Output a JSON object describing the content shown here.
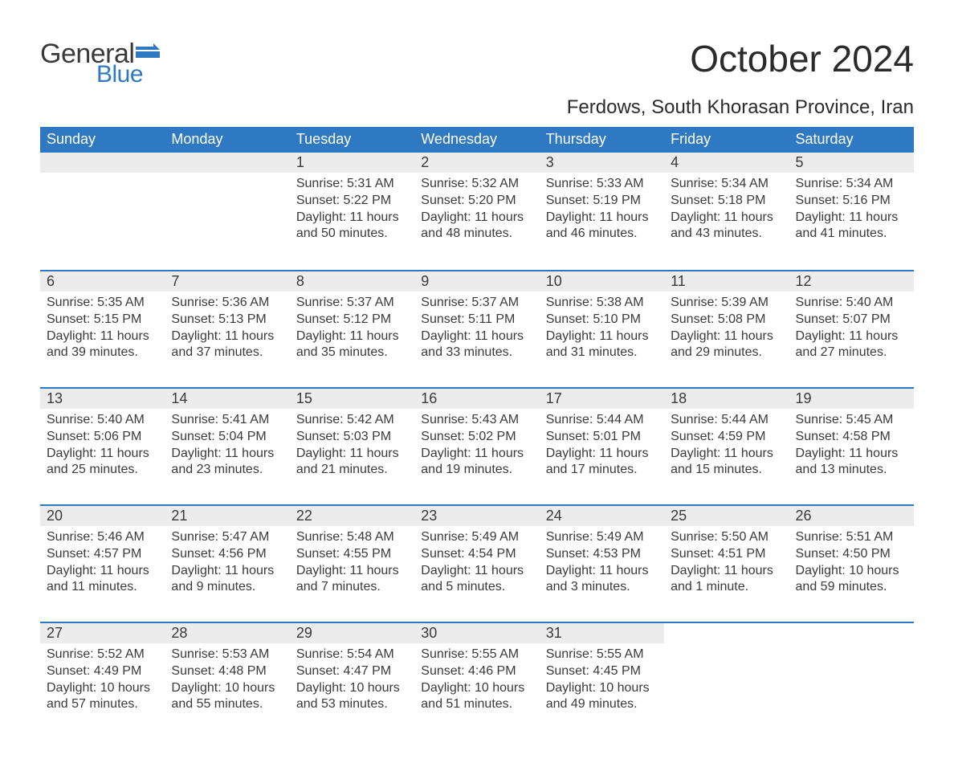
{
  "logo": {
    "text_general": "General",
    "text_blue": "Blue",
    "general_color": "#3a3a3a",
    "blue_color": "#2f78c2",
    "flag_color": "#2f78c2"
  },
  "header": {
    "month_title": "October 2024",
    "location": "Ferdows, South Khorasan Province, Iran"
  },
  "calendar": {
    "header_bg": "#2f78c2",
    "header_text_color": "#ffffff",
    "week_border_color": "#2f78c2",
    "daynum_bg": "#ececec",
    "text_color": "#3a3a3a",
    "background_color": "#ffffff",
    "weekday_fontsize": 18,
    "daynum_fontsize": 18,
    "body_fontsize": 16,
    "columns": 7,
    "rows": 5,
    "weekdays": [
      "Sunday",
      "Monday",
      "Tuesday",
      "Wednesday",
      "Thursday",
      "Friday",
      "Saturday"
    ],
    "weeks": [
      [
        {
          "day": "",
          "lines": []
        },
        {
          "day": "",
          "lines": []
        },
        {
          "day": "1",
          "lines": [
            "Sunrise: 5:31 AM",
            "Sunset: 5:22 PM",
            "Daylight: 11 hours",
            "and 50 minutes."
          ]
        },
        {
          "day": "2",
          "lines": [
            "Sunrise: 5:32 AM",
            "Sunset: 5:20 PM",
            "Daylight: 11 hours",
            "and 48 minutes."
          ]
        },
        {
          "day": "3",
          "lines": [
            "Sunrise: 5:33 AM",
            "Sunset: 5:19 PM",
            "Daylight: 11 hours",
            "and 46 minutes."
          ]
        },
        {
          "day": "4",
          "lines": [
            "Sunrise: 5:34 AM",
            "Sunset: 5:18 PM",
            "Daylight: 11 hours",
            "and 43 minutes."
          ]
        },
        {
          "day": "5",
          "lines": [
            "Sunrise: 5:34 AM",
            "Sunset: 5:16 PM",
            "Daylight: 11 hours",
            "and 41 minutes."
          ]
        }
      ],
      [
        {
          "day": "6",
          "lines": [
            "Sunrise: 5:35 AM",
            "Sunset: 5:15 PM",
            "Daylight: 11 hours",
            "and 39 minutes."
          ]
        },
        {
          "day": "7",
          "lines": [
            "Sunrise: 5:36 AM",
            "Sunset: 5:13 PM",
            "Daylight: 11 hours",
            "and 37 minutes."
          ]
        },
        {
          "day": "8",
          "lines": [
            "Sunrise: 5:37 AM",
            "Sunset: 5:12 PM",
            "Daylight: 11 hours",
            "and 35 minutes."
          ]
        },
        {
          "day": "9",
          "lines": [
            "Sunrise: 5:37 AM",
            "Sunset: 5:11 PM",
            "Daylight: 11 hours",
            "and 33 minutes."
          ]
        },
        {
          "day": "10",
          "lines": [
            "Sunrise: 5:38 AM",
            "Sunset: 5:10 PM",
            "Daylight: 11 hours",
            "and 31 minutes."
          ]
        },
        {
          "day": "11",
          "lines": [
            "Sunrise: 5:39 AM",
            "Sunset: 5:08 PM",
            "Daylight: 11 hours",
            "and 29 minutes."
          ]
        },
        {
          "day": "12",
          "lines": [
            "Sunrise: 5:40 AM",
            "Sunset: 5:07 PM",
            "Daylight: 11 hours",
            "and 27 minutes."
          ]
        }
      ],
      [
        {
          "day": "13",
          "lines": [
            "Sunrise: 5:40 AM",
            "Sunset: 5:06 PM",
            "Daylight: 11 hours",
            "and 25 minutes."
          ]
        },
        {
          "day": "14",
          "lines": [
            "Sunrise: 5:41 AM",
            "Sunset: 5:04 PM",
            "Daylight: 11 hours",
            "and 23 minutes."
          ]
        },
        {
          "day": "15",
          "lines": [
            "Sunrise: 5:42 AM",
            "Sunset: 5:03 PM",
            "Daylight: 11 hours",
            "and 21 minutes."
          ]
        },
        {
          "day": "16",
          "lines": [
            "Sunrise: 5:43 AM",
            "Sunset: 5:02 PM",
            "Daylight: 11 hours",
            "and 19 minutes."
          ]
        },
        {
          "day": "17",
          "lines": [
            "Sunrise: 5:44 AM",
            "Sunset: 5:01 PM",
            "Daylight: 11 hours",
            "and 17 minutes."
          ]
        },
        {
          "day": "18",
          "lines": [
            "Sunrise: 5:44 AM",
            "Sunset: 4:59 PM",
            "Daylight: 11 hours",
            "and 15 minutes."
          ]
        },
        {
          "day": "19",
          "lines": [
            "Sunrise: 5:45 AM",
            "Sunset: 4:58 PM",
            "Daylight: 11 hours",
            "and 13 minutes."
          ]
        }
      ],
      [
        {
          "day": "20",
          "lines": [
            "Sunrise: 5:46 AM",
            "Sunset: 4:57 PM",
            "Daylight: 11 hours",
            "and 11 minutes."
          ]
        },
        {
          "day": "21",
          "lines": [
            "Sunrise: 5:47 AM",
            "Sunset: 4:56 PM",
            "Daylight: 11 hours",
            "and 9 minutes."
          ]
        },
        {
          "day": "22",
          "lines": [
            "Sunrise: 5:48 AM",
            "Sunset: 4:55 PM",
            "Daylight: 11 hours",
            "and 7 minutes."
          ]
        },
        {
          "day": "23",
          "lines": [
            "Sunrise: 5:49 AM",
            "Sunset: 4:54 PM",
            "Daylight: 11 hours",
            "and 5 minutes."
          ]
        },
        {
          "day": "24",
          "lines": [
            "Sunrise: 5:49 AM",
            "Sunset: 4:53 PM",
            "Daylight: 11 hours",
            "and 3 minutes."
          ]
        },
        {
          "day": "25",
          "lines": [
            "Sunrise: 5:50 AM",
            "Sunset: 4:51 PM",
            "Daylight: 11 hours",
            "and 1 minute."
          ]
        },
        {
          "day": "26",
          "lines": [
            "Sunrise: 5:51 AM",
            "Sunset: 4:50 PM",
            "Daylight: 10 hours",
            "and 59 minutes."
          ]
        }
      ],
      [
        {
          "day": "27",
          "lines": [
            "Sunrise: 5:52 AM",
            "Sunset: 4:49 PM",
            "Daylight: 10 hours",
            "and 57 minutes."
          ]
        },
        {
          "day": "28",
          "lines": [
            "Sunrise: 5:53 AM",
            "Sunset: 4:48 PM",
            "Daylight: 10 hours",
            "and 55 minutes."
          ]
        },
        {
          "day": "29",
          "lines": [
            "Sunrise: 5:54 AM",
            "Sunset: 4:47 PM",
            "Daylight: 10 hours",
            "and 53 minutes."
          ]
        },
        {
          "day": "30",
          "lines": [
            "Sunrise: 5:55 AM",
            "Sunset: 4:46 PM",
            "Daylight: 10 hours",
            "and 51 minutes."
          ]
        },
        {
          "day": "31",
          "lines": [
            "Sunrise: 5:55 AM",
            "Sunset: 4:45 PM",
            "Daylight: 10 hours",
            "and 49 minutes."
          ]
        },
        {
          "day": "",
          "lines": []
        },
        {
          "day": "",
          "lines": []
        }
      ]
    ]
  }
}
